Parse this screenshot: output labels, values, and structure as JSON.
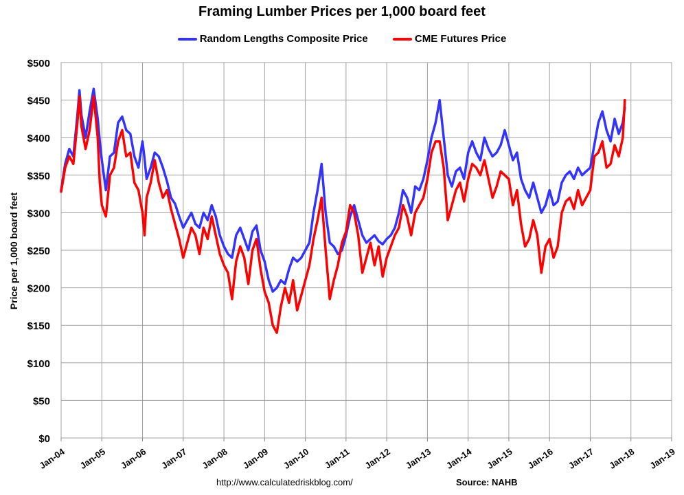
{
  "chart_data": {
    "type": "line",
    "title": "Framing Lumber Prices per 1,000 board feet",
    "ylabel": "Price per 1,000 board feet",
    "xlabel": "",
    "x_tick_labels": [
      "Jan-04",
      "Jan-05",
      "Jan-06",
      "Jan-07",
      "Jan-08",
      "Jan-09",
      "Jan-10",
      "Jan-11",
      "Jan-12",
      "Jan-13",
      "Jan-14",
      "Jan-15",
      "Jan-16",
      "Jan-17",
      "Jan-18",
      "Jan-19"
    ],
    "xlim": [
      2004,
      2019
    ],
    "y_tick_labels": [
      "$0",
      "$50",
      "$100",
      "$150",
      "$200",
      "$250",
      "$300",
      "$350",
      "$400",
      "$450",
      "$500"
    ],
    "ylim": [
      0,
      500
    ],
    "grid": true,
    "legend_position": "top-center",
    "series": [
      {
        "name": "Random Lengths Composite Price",
        "color": "#3333ff",
        "points": [
          [
            2004.0,
            330
          ],
          [
            2004.1,
            365
          ],
          [
            2004.2,
            385
          ],
          [
            2004.3,
            375
          ],
          [
            2004.4,
            430
          ],
          [
            2004.45,
            463
          ],
          [
            2004.5,
            430
          ],
          [
            2004.6,
            400
          ],
          [
            2004.7,
            435
          ],
          [
            2004.8,
            465
          ],
          [
            2004.9,
            425
          ],
          [
            2004.95,
            395
          ],
          [
            2005.0,
            370
          ],
          [
            2005.1,
            330
          ],
          [
            2005.2,
            375
          ],
          [
            2005.3,
            380
          ],
          [
            2005.4,
            420
          ],
          [
            2005.5,
            428
          ],
          [
            2005.6,
            410
          ],
          [
            2005.7,
            405
          ],
          [
            2005.8,
            375
          ],
          [
            2005.9,
            360
          ],
          [
            2006.0,
            395
          ],
          [
            2006.05,
            372
          ],
          [
            2006.1,
            345
          ],
          [
            2006.2,
            360
          ],
          [
            2006.3,
            380
          ],
          [
            2006.4,
            375
          ],
          [
            2006.5,
            360
          ],
          [
            2006.6,
            342
          ],
          [
            2006.7,
            320
          ],
          [
            2006.8,
            312
          ],
          [
            2006.9,
            295
          ],
          [
            2007.0,
            280
          ],
          [
            2007.1,
            290
          ],
          [
            2007.2,
            300
          ],
          [
            2007.3,
            285
          ],
          [
            2007.4,
            280
          ],
          [
            2007.5,
            300
          ],
          [
            2007.6,
            290
          ],
          [
            2007.7,
            310
          ],
          [
            2007.8,
            295
          ],
          [
            2007.9,
            270
          ],
          [
            2008.0,
            255
          ],
          [
            2008.1,
            245
          ],
          [
            2008.2,
            240
          ],
          [
            2008.3,
            270
          ],
          [
            2008.4,
            280
          ],
          [
            2008.5,
            265
          ],
          [
            2008.6,
            250
          ],
          [
            2008.7,
            275
          ],
          [
            2008.8,
            283
          ],
          [
            2008.9,
            250
          ],
          [
            2009.0,
            235
          ],
          [
            2009.1,
            210
          ],
          [
            2009.2,
            195
          ],
          [
            2009.3,
            200
          ],
          [
            2009.4,
            210
          ],
          [
            2009.5,
            205
          ],
          [
            2009.6,
            225
          ],
          [
            2009.7,
            240
          ],
          [
            2009.8,
            235
          ],
          [
            2009.9,
            240
          ],
          [
            2010.0,
            250
          ],
          [
            2010.1,
            260
          ],
          [
            2010.2,
            300
          ],
          [
            2010.3,
            330
          ],
          [
            2010.4,
            365
          ],
          [
            2010.5,
            300
          ],
          [
            2010.6,
            260
          ],
          [
            2010.7,
            255
          ],
          [
            2010.8,
            245
          ],
          [
            2010.9,
            250
          ],
          [
            2011.0,
            270
          ],
          [
            2011.1,
            295
          ],
          [
            2011.2,
            310
          ],
          [
            2011.3,
            290
          ],
          [
            2011.4,
            270
          ],
          [
            2011.5,
            260
          ],
          [
            2011.6,
            265
          ],
          [
            2011.7,
            270
          ],
          [
            2011.8,
            262
          ],
          [
            2011.9,
            258
          ],
          [
            2012.0,
            265
          ],
          [
            2012.1,
            270
          ],
          [
            2012.2,
            280
          ],
          [
            2012.3,
            300
          ],
          [
            2012.4,
            330
          ],
          [
            2012.5,
            320
          ],
          [
            2012.6,
            300
          ],
          [
            2012.7,
            335
          ],
          [
            2012.8,
            330
          ],
          [
            2012.9,
            345
          ],
          [
            2013.0,
            370
          ],
          [
            2013.1,
            400
          ],
          [
            2013.2,
            420
          ],
          [
            2013.3,
            450
          ],
          [
            2013.4,
            400
          ],
          [
            2013.5,
            350
          ],
          [
            2013.6,
            335
          ],
          [
            2013.7,
            355
          ],
          [
            2013.8,
            360
          ],
          [
            2013.9,
            345
          ],
          [
            2014.0,
            380
          ],
          [
            2014.1,
            395
          ],
          [
            2014.2,
            380
          ],
          [
            2014.3,
            370
          ],
          [
            2014.4,
            400
          ],
          [
            2014.5,
            385
          ],
          [
            2014.6,
            375
          ],
          [
            2014.7,
            380
          ],
          [
            2014.8,
            390
          ],
          [
            2014.9,
            410
          ],
          [
            2015.0,
            390
          ],
          [
            2015.1,
            370
          ],
          [
            2015.2,
            380
          ],
          [
            2015.3,
            345
          ],
          [
            2015.4,
            330
          ],
          [
            2015.5,
            320
          ],
          [
            2015.6,
            340
          ],
          [
            2015.7,
            320
          ],
          [
            2015.8,
            300
          ],
          [
            2015.9,
            310
          ],
          [
            2016.0,
            330
          ],
          [
            2016.1,
            310
          ],
          [
            2016.2,
            315
          ],
          [
            2016.3,
            340
          ],
          [
            2016.4,
            350
          ],
          [
            2016.5,
            355
          ],
          [
            2016.6,
            345
          ],
          [
            2016.7,
            360
          ],
          [
            2016.8,
            350
          ],
          [
            2016.9,
            355
          ],
          [
            2017.0,
            360
          ],
          [
            2017.1,
            390
          ],
          [
            2017.2,
            420
          ],
          [
            2017.3,
            435
          ],
          [
            2017.4,
            410
          ],
          [
            2017.5,
            395
          ],
          [
            2017.6,
            425
          ],
          [
            2017.7,
            405
          ],
          [
            2017.8,
            420
          ],
          [
            2017.85,
            440
          ]
        ]
      },
      {
        "name": "CME Futures Price",
        "color": "#ff0000",
        "points": [
          [
            2004.0,
            328
          ],
          [
            2004.1,
            360
          ],
          [
            2004.2,
            375
          ],
          [
            2004.3,
            365
          ],
          [
            2004.4,
            420
          ],
          [
            2004.45,
            455
          ],
          [
            2004.5,
            415
          ],
          [
            2004.6,
            385
          ],
          [
            2004.7,
            410
          ],
          [
            2004.8,
            455
          ],
          [
            2004.9,
            400
          ],
          [
            2004.95,
            340
          ],
          [
            2005.0,
            310
          ],
          [
            2005.1,
            295
          ],
          [
            2005.2,
            350
          ],
          [
            2005.3,
            360
          ],
          [
            2005.4,
            395
          ],
          [
            2005.5,
            410
          ],
          [
            2005.6,
            375
          ],
          [
            2005.7,
            380
          ],
          [
            2005.8,
            340
          ],
          [
            2005.9,
            330
          ],
          [
            2006.0,
            300
          ],
          [
            2006.05,
            270
          ],
          [
            2006.1,
            320
          ],
          [
            2006.2,
            340
          ],
          [
            2006.3,
            370
          ],
          [
            2006.4,
            340
          ],
          [
            2006.5,
            320
          ],
          [
            2006.6,
            330
          ],
          [
            2006.7,
            305
          ],
          [
            2006.8,
            285
          ],
          [
            2006.9,
            265
          ],
          [
            2007.0,
            240
          ],
          [
            2007.1,
            260
          ],
          [
            2007.2,
            280
          ],
          [
            2007.3,
            270
          ],
          [
            2007.4,
            245
          ],
          [
            2007.5,
            280
          ],
          [
            2007.6,
            265
          ],
          [
            2007.7,
            295
          ],
          [
            2007.8,
            270
          ],
          [
            2007.9,
            245
          ],
          [
            2008.0,
            230
          ],
          [
            2008.1,
            220
          ],
          [
            2008.2,
            185
          ],
          [
            2008.3,
            235
          ],
          [
            2008.4,
            255
          ],
          [
            2008.5,
            240
          ],
          [
            2008.6,
            205
          ],
          [
            2008.7,
            250
          ],
          [
            2008.8,
            265
          ],
          [
            2008.9,
            225
          ],
          [
            2009.0,
            195
          ],
          [
            2009.1,
            180
          ],
          [
            2009.2,
            150
          ],
          [
            2009.3,
            140
          ],
          [
            2009.4,
            175
          ],
          [
            2009.5,
            200
          ],
          [
            2009.6,
            180
          ],
          [
            2009.7,
            210
          ],
          [
            2009.8,
            170
          ],
          [
            2009.9,
            190
          ],
          [
            2010.0,
            210
          ],
          [
            2010.1,
            230
          ],
          [
            2010.2,
            265
          ],
          [
            2010.3,
            290
          ],
          [
            2010.4,
            320
          ],
          [
            2010.5,
            250
          ],
          [
            2010.6,
            185
          ],
          [
            2010.7,
            210
          ],
          [
            2010.8,
            230
          ],
          [
            2010.9,
            260
          ],
          [
            2011.0,
            275
          ],
          [
            2011.1,
            310
          ],
          [
            2011.2,
            300
          ],
          [
            2011.3,
            270
          ],
          [
            2011.4,
            220
          ],
          [
            2011.5,
            240
          ],
          [
            2011.6,
            260
          ],
          [
            2011.7,
            230
          ],
          [
            2011.8,
            255
          ],
          [
            2011.9,
            215
          ],
          [
            2012.0,
            240
          ],
          [
            2012.1,
            255
          ],
          [
            2012.2,
            270
          ],
          [
            2012.3,
            280
          ],
          [
            2012.4,
            310
          ],
          [
            2012.5,
            295
          ],
          [
            2012.6,
            270
          ],
          [
            2012.7,
            300
          ],
          [
            2012.8,
            310
          ],
          [
            2012.9,
            320
          ],
          [
            2013.0,
            345
          ],
          [
            2013.1,
            380
          ],
          [
            2013.2,
            395
          ],
          [
            2013.3,
            395
          ],
          [
            2013.4,
            360
          ],
          [
            2013.5,
            290
          ],
          [
            2013.6,
            310
          ],
          [
            2013.7,
            330
          ],
          [
            2013.8,
            340
          ],
          [
            2013.9,
            315
          ],
          [
            2014.0,
            345
          ],
          [
            2014.1,
            365
          ],
          [
            2014.2,
            360
          ],
          [
            2014.3,
            350
          ],
          [
            2014.4,
            370
          ],
          [
            2014.5,
            345
          ],
          [
            2014.6,
            320
          ],
          [
            2014.7,
            335
          ],
          [
            2014.8,
            355
          ],
          [
            2014.9,
            350
          ],
          [
            2015.0,
            345
          ],
          [
            2015.1,
            310
          ],
          [
            2015.2,
            330
          ],
          [
            2015.3,
            285
          ],
          [
            2015.4,
            255
          ],
          [
            2015.5,
            265
          ],
          [
            2015.6,
            290
          ],
          [
            2015.7,
            270
          ],
          [
            2015.8,
            220
          ],
          [
            2015.9,
            255
          ],
          [
            2016.0,
            265
          ],
          [
            2016.1,
            240
          ],
          [
            2016.2,
            255
          ],
          [
            2016.3,
            300
          ],
          [
            2016.4,
            315
          ],
          [
            2016.5,
            320
          ],
          [
            2016.6,
            305
          ],
          [
            2016.7,
            330
          ],
          [
            2016.8,
            310
          ],
          [
            2016.9,
            320
          ],
          [
            2017.0,
            330
          ],
          [
            2017.1,
            375
          ],
          [
            2017.2,
            380
          ],
          [
            2017.3,
            395
          ],
          [
            2017.4,
            360
          ],
          [
            2017.5,
            365
          ],
          [
            2017.6,
            390
          ],
          [
            2017.7,
            375
          ],
          [
            2017.8,
            400
          ],
          [
            2017.85,
            450
          ]
        ]
      }
    ]
  },
  "footer": {
    "url": "http://www.calculatedriskblog.com/",
    "source": "Source: NAHB"
  }
}
